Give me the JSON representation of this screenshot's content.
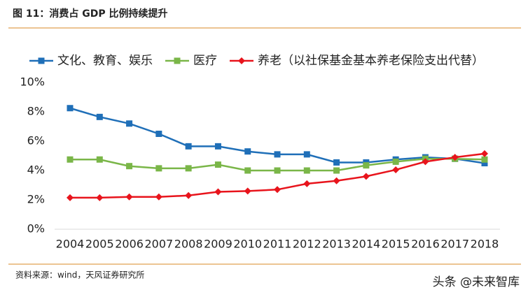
{
  "chart_data": {
    "type": "line",
    "title": "图 11：消费占 GDP 比例持续提升",
    "categories": [
      "2004",
      "2005",
      "2006",
      "2007",
      "2008",
      "2009",
      "2010",
      "2011",
      "2012",
      "2013",
      "2014",
      "2015",
      "2016",
      "2017",
      "2018"
    ],
    "series": [
      {
        "name": "文化、教育、娱乐",
        "color": "#1f6fb8",
        "marker": "square",
        "values": [
          8.25,
          7.65,
          7.2,
          6.5,
          5.65,
          5.65,
          5.3,
          5.1,
          5.1,
          4.55,
          4.55,
          4.75,
          4.9,
          4.8,
          4.5
        ]
      },
      {
        "name": "医疗",
        "color": "#7ab648",
        "marker": "square",
        "values": [
          4.75,
          4.75,
          4.3,
          4.15,
          4.15,
          4.4,
          4.0,
          4.0,
          4.0,
          4.0,
          4.35,
          4.6,
          4.8,
          4.8,
          4.75
        ]
      },
      {
        "name": "养老（以社保基金基本养老保险支出代替）",
        "color": "#e8141c",
        "marker": "diamond",
        "values": [
          2.15,
          2.15,
          2.2,
          2.2,
          2.3,
          2.55,
          2.6,
          2.7,
          3.1,
          3.3,
          3.6,
          4.05,
          4.6,
          4.9,
          5.15
        ]
      }
    ],
    "ylim": [
      0,
      10
    ],
    "yticks": [
      {
        "value": 0,
        "label": "0%"
      },
      {
        "value": 2,
        "label": "2%"
      },
      {
        "value": 4,
        "label": "4%"
      },
      {
        "value": 6,
        "label": "6%"
      },
      {
        "value": 8,
        "label": "8%"
      },
      {
        "value": 10,
        "label": "10%"
      }
    ],
    "grid": false,
    "legend": "top"
  },
  "source": "资料来源：wind，天风证券研究所",
  "watermark": "头条 @未来智库"
}
